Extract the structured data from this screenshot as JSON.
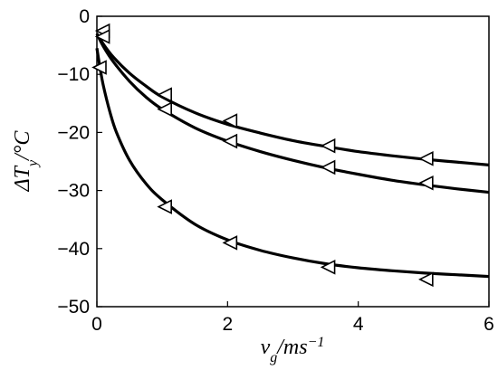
{
  "chart_data": {
    "type": "scatter",
    "xlabel": "v_g / ms^-1",
    "xlabel_parts": {
      "var": "v",
      "sub": "g",
      "unit": "/ms",
      "sup": "−1"
    },
    "ylabel": "ΔT_y / °C",
    "ylabel_parts": {
      "pre": "ΔT",
      "sub": "y",
      "unit": "/°C"
    },
    "xlim": [
      0,
      6
    ],
    "ylim": [
      -50,
      0
    ],
    "x_ticks": [
      0,
      2,
      4,
      6
    ],
    "x_tick_labels": [
      "0",
      "2",
      "4",
      "6"
    ],
    "y_ticks": [
      0,
      -10,
      -20,
      -30,
      -40,
      -50
    ],
    "y_tick_labels": [
      "0",
      "−10",
      "−20",
      "−30",
      "−40",
      "−50"
    ],
    "grid": false,
    "marker": "triangle-left",
    "series": [
      {
        "points": {
          "x": [
            0.05,
            1.0,
            2.0,
            3.5,
            5.0
          ],
          "y": [
            -2.5,
            -13.5,
            -18.0,
            -22.3,
            -24.5
          ]
        },
        "fit": {
          "x": [
            0,
            0.1,
            0.25,
            0.5,
            0.75,
            1,
            1.5,
            2,
            2.5,
            3,
            3.5,
            4,
            4.5,
            5,
            5.5,
            6
          ],
          "y": [
            -3.0,
            -4.8,
            -7.0,
            -9.8,
            -12.0,
            -13.9,
            -16.6,
            -18.6,
            -20.1,
            -21.4,
            -22.4,
            -23.3,
            -24.0,
            -24.6,
            -25.1,
            -25.6
          ]
        }
      },
      {
        "points": {
          "x": [
            0.05,
            1.0,
            2.0,
            3.5,
            5.0
          ],
          "y": [
            -3.5,
            -16.0,
            -21.5,
            -26.0,
            -28.7
          ]
        },
        "fit": {
          "x": [
            0,
            0.1,
            0.25,
            0.5,
            0.75,
            1,
            1.5,
            2,
            2.5,
            3,
            3.5,
            4,
            4.5,
            5,
            5.5,
            6
          ],
          "y": [
            -3.0,
            -5.2,
            -7.8,
            -11.2,
            -13.9,
            -16.0,
            -19.2,
            -21.5,
            -23.3,
            -24.8,
            -26.1,
            -27.2,
            -28.2,
            -29.0,
            -29.7,
            -30.3
          ]
        }
      },
      {
        "points": {
          "x": [
            0.0,
            1.0,
            2.0,
            3.5,
            5.0
          ],
          "y": [
            -8.8,
            -32.8,
            -39.0,
            -43.2,
            -45.3
          ]
        },
        "fit": {
          "x": [
            0.0,
            0.05,
            0.1,
            0.2,
            0.3,
            0.5,
            0.75,
            1,
            1.5,
            2,
            2.5,
            3,
            3.5,
            4,
            4.5,
            5,
            5.5,
            6
          ],
          "y": [
            -5.5,
            -9.0,
            -12.0,
            -16.5,
            -20.0,
            -24.8,
            -28.8,
            -31.6,
            -35.8,
            -38.5,
            -40.3,
            -41.6,
            -42.6,
            -43.3,
            -43.8,
            -44.2,
            -44.5,
            -44.8
          ]
        }
      }
    ]
  }
}
